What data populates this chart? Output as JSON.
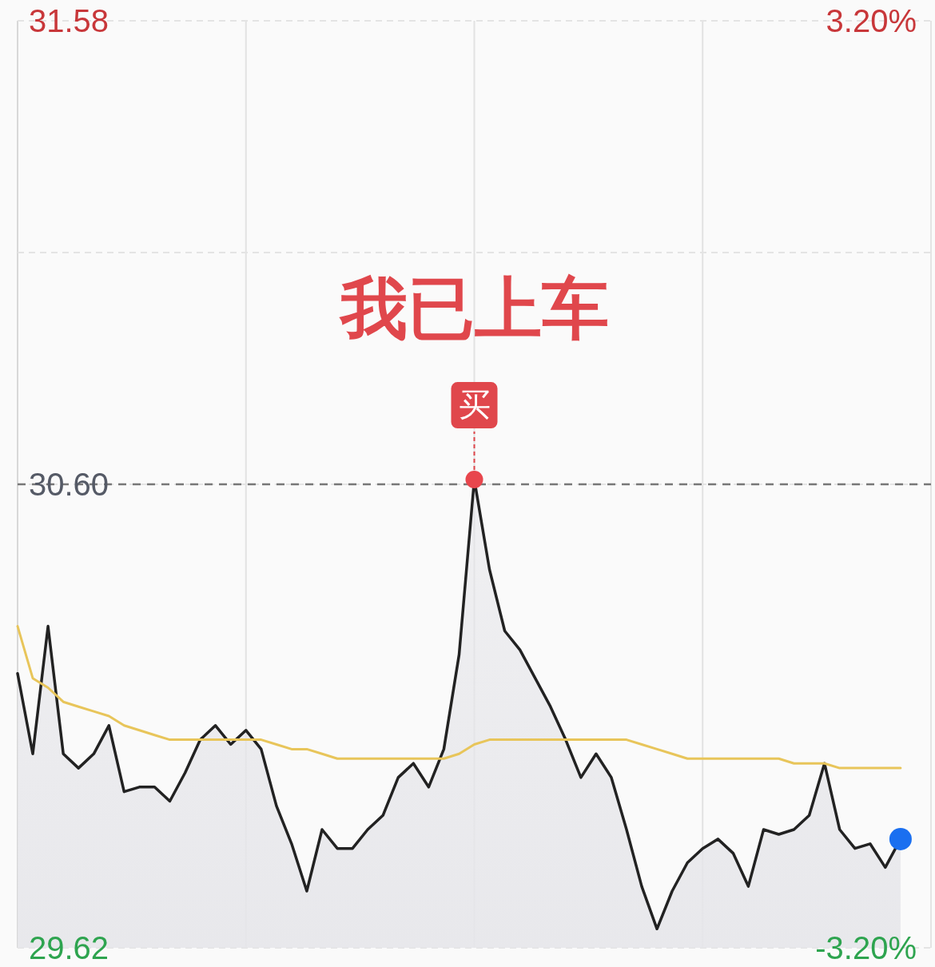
{
  "chart_data": {
    "type": "line",
    "categories": [
      null,
      null,
      null,
      null,
      null,
      null,
      null,
      null,
      null,
      null,
      null,
      null,
      null,
      null,
      null,
      null,
      null,
      null,
      null,
      null,
      null,
      null,
      null,
      null,
      null,
      null,
      null,
      null,
      null,
      null,
      null,
      null,
      null,
      null,
      null,
      null,
      null,
      null,
      null,
      null,
      null,
      null,
      null,
      null,
      null,
      null,
      null,
      null,
      null,
      null,
      null,
      null,
      null,
      null,
      null,
      null,
      null,
      null,
      null,
      null,
      null
    ],
    "series": [
      {
        "type": "area",
        "color": "#222222",
        "values": [
          30.2,
          30.03,
          30.3,
          30.03,
          30.0,
          30.03,
          30.09,
          29.95,
          29.96,
          29.96,
          29.93,
          29.99,
          30.06,
          30.09,
          30.05,
          30.08,
          30.04,
          29.92,
          29.84,
          29.74,
          29.87,
          29.83,
          29.83,
          29.87,
          29.9,
          29.98,
          30.01,
          29.96,
          30.04,
          30.24,
          30.61,
          30.42,
          30.29,
          30.25,
          30.19,
          30.13,
          30.06,
          29.98,
          30.03,
          29.98,
          29.87,
          29.75,
          29.66,
          29.74,
          29.8,
          29.83,
          29.85,
          29.82,
          29.75,
          29.87,
          29.86,
          29.87,
          29.9,
          30.01,
          29.87,
          29.83,
          29.84,
          29.79,
          29.85,
          null,
          null
        ]
      },
      {
        "type": "line",
        "color": "#e8c55a",
        "values": [
          30.3,
          30.19,
          30.17,
          30.14,
          30.13,
          30.12,
          30.11,
          30.09,
          30.08,
          30.07,
          30.06,
          30.06,
          30.06,
          30.06,
          30.06,
          30.06,
          30.06,
          30.05,
          30.04,
          30.04,
          30.03,
          30.02,
          30.02,
          30.02,
          30.02,
          30.02,
          30.02,
          30.02,
          30.02,
          30.03,
          30.05,
          30.06,
          30.06,
          30.06,
          30.06,
          30.06,
          30.06,
          30.06,
          30.06,
          30.06,
          30.06,
          30.05,
          30.04,
          30.03,
          30.02,
          30.02,
          30.02,
          30.02,
          30.02,
          30.02,
          30.02,
          30.01,
          30.01,
          30.01,
          30.0,
          30.0,
          30.0,
          30.0,
          30.0,
          null,
          null
        ]
      },
      {
        "type": "scatter",
        "color": "#1a6ff0",
        "values": [
          null,
          null,
          null,
          null,
          null,
          null,
          null,
          null,
          null,
          null,
          null,
          null,
          null,
          null,
          null,
          null,
          null,
          null,
          null,
          null,
          null,
          null,
          null,
          null,
          null,
          null,
          null,
          null,
          null,
          null,
          null,
          null,
          null,
          null,
          null,
          null,
          null,
          null,
          null,
          null,
          null,
          null,
          null,
          null,
          null,
          null,
          null,
          null,
          null,
          null,
          null,
          null,
          null,
          null,
          null,
          null,
          null,
          null,
          29.85,
          null,
          null
        ]
      }
    ],
    "ylim": [
      29.62,
      31.58
    ],
    "yticks": [
      {
        "value": 31.58,
        "label": "31.58"
      },
      {
        "value": 31.09,
        "label": null
      },
      {
        "value": 30.6,
        "label": "30.60"
      },
      {
        "value": 29.62,
        "label": "29.62"
      }
    ],
    "y2lim": [
      -3.2,
      3.2
    ],
    "y2ticks": [
      {
        "value": 3.2,
        "label": "3.20%"
      },
      {
        "value": -3.2,
        "label": "-3.20%"
      }
    ],
    "ref_lines": [
      {
        "axis": "y",
        "value": 30.6,
        "color": "#777777",
        "line_style": "dashed"
      }
    ],
    "grid": true,
    "annotations": [
      "我已上车",
      {
        "text": "买",
        "y": 30.61
      }
    ]
  }
}
